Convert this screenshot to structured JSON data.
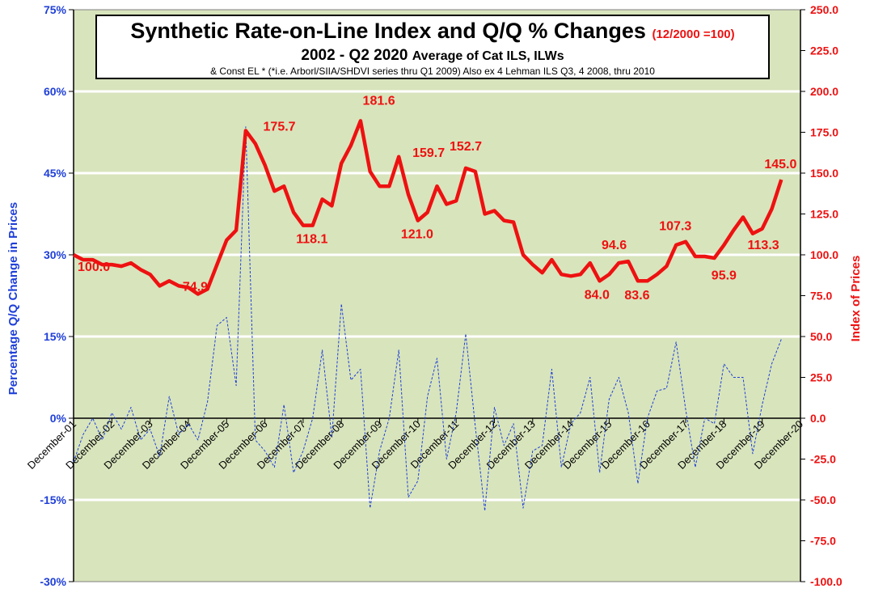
{
  "chart_data": {
    "type": "line",
    "title": "Synthetic Rate-on-Line Index and Q/Q % Changes",
    "title_note": "(12/2000 =100)",
    "subtitle": "2002 - Q2 2020",
    "subtitle_suffix": "Average of Cat ILS, ILWs",
    "footnote": "& Const EL * (*i.e. Arborl/SIIA/SHDVI  series thru Q1 2009)  Also ex 4 Lehman ILS Q3, 4 2008, thru 2010",
    "ylabel_left": "Percentage Q/Q Change in Prices",
    "ylabel_right": "Index of Prices",
    "ylim_left": [
      -30,
      75
    ],
    "ylim_right": [
      -100,
      250
    ],
    "yticks_left": [
      "-30%",
      "-15%",
      "0%",
      "15%",
      "30%",
      "45%",
      "60%",
      "75%"
    ],
    "yticks_right": [
      "-100.0",
      "-75.0",
      "-50.0",
      "-25.0",
      "0.0",
      "25.0",
      "50.0",
      "75.0",
      "100.0",
      "125.0",
      "150.0",
      "175.0",
      "200.0",
      "225.0",
      "250.0"
    ],
    "x_range": [
      2001.92,
      2020.92
    ],
    "x_ticks": [
      {
        "x": 2001.92,
        "label": "December-01"
      },
      {
        "x": 2002.92,
        "label": "December-02"
      },
      {
        "x": 2003.92,
        "label": "December-03"
      },
      {
        "x": 2004.92,
        "label": "December-04"
      },
      {
        "x": 2005.92,
        "label": "December-05"
      },
      {
        "x": 2006.92,
        "label": "December-06"
      },
      {
        "x": 2007.92,
        "label": "December-07"
      },
      {
        "x": 2008.92,
        "label": "December-08"
      },
      {
        "x": 2009.92,
        "label": "December-09"
      },
      {
        "x": 2010.92,
        "label": "December-10"
      },
      {
        "x": 2011.92,
        "label": "December-11"
      },
      {
        "x": 2012.92,
        "label": "December-12"
      },
      {
        "x": 2013.92,
        "label": "December-13"
      },
      {
        "x": 2014.92,
        "label": "December-14"
      },
      {
        "x": 2015.92,
        "label": "December-15"
      },
      {
        "x": 2016.92,
        "label": "December-16"
      },
      {
        "x": 2017.92,
        "label": "December-17"
      },
      {
        "x": 2018.92,
        "label": "December-18"
      },
      {
        "x": 2019.92,
        "label": "December-19"
      },
      {
        "x": 2020.92,
        "label": "December-20"
      }
    ],
    "grid": true,
    "series": [
      {
        "name": "",
        "axis": "right",
        "color": "#ee1111",
        "style": "solid",
        "points": [
          [
            2001.92,
            100
          ],
          [
            2002.17,
            97
          ],
          [
            2002.42,
            97
          ],
          [
            2002.67,
            94
          ],
          [
            2002.92,
            94
          ],
          [
            2003.17,
            93
          ],
          [
            2003.42,
            95
          ],
          [
            2003.67,
            91
          ],
          [
            2003.92,
            88
          ],
          [
            2004.17,
            81
          ],
          [
            2004.42,
            84
          ],
          [
            2004.67,
            81
          ],
          [
            2004.92,
            80
          ],
          [
            2005.17,
            76
          ],
          [
            2005.42,
            79
          ],
          [
            2005.67,
            94
          ],
          [
            2005.92,
            109
          ],
          [
            2006.17,
            115
          ],
          [
            2006.42,
            176
          ],
          [
            2006.67,
            168
          ],
          [
            2006.92,
            155
          ],
          [
            2007.17,
            139
          ],
          [
            2007.42,
            142
          ],
          [
            2007.67,
            126
          ],
          [
            2007.92,
            118
          ],
          [
            2008.17,
            118
          ],
          [
            2008.42,
            134
          ],
          [
            2008.67,
            130
          ],
          [
            2008.92,
            156
          ],
          [
            2009.17,
            167
          ],
          [
            2009.42,
            182
          ],
          [
            2009.67,
            151
          ],
          [
            2009.92,
            142
          ],
          [
            2010.17,
            142
          ],
          [
            2010.42,
            160
          ],
          [
            2010.67,
            137
          ],
          [
            2010.92,
            121
          ],
          [
            2011.17,
            126
          ],
          [
            2011.42,
            142
          ],
          [
            2011.67,
            131
          ],
          [
            2011.92,
            133
          ],
          [
            2012.17,
            153
          ],
          [
            2012.42,
            151
          ],
          [
            2012.67,
            125
          ],
          [
            2012.92,
            127
          ],
          [
            2013.17,
            121
          ],
          [
            2013.42,
            120
          ],
          [
            2013.67,
            100
          ],
          [
            2013.92,
            94
          ],
          [
            2014.17,
            89
          ],
          [
            2014.42,
            97
          ],
          [
            2014.67,
            88
          ],
          [
            2014.92,
            87
          ],
          [
            2015.17,
            88
          ],
          [
            2015.42,
            95
          ],
          [
            2015.67,
            84
          ],
          [
            2015.92,
            88
          ],
          [
            2016.17,
            95
          ],
          [
            2016.42,
            96
          ],
          [
            2016.67,
            84
          ],
          [
            2016.92,
            84
          ],
          [
            2017.17,
            88
          ],
          [
            2017.42,
            93
          ],
          [
            2017.67,
            106
          ],
          [
            2017.92,
            108
          ],
          [
            2018.17,
            99
          ],
          [
            2018.42,
            99
          ],
          [
            2018.67,
            98
          ],
          [
            2018.92,
            106
          ],
          [
            2019.17,
            115
          ],
          [
            2019.42,
            123
          ],
          [
            2019.67,
            113
          ],
          [
            2019.92,
            116
          ],
          [
            2020.17,
            128
          ],
          [
            2020.42,
            146
          ]
        ]
      },
      {
        "name": "",
        "axis": "left",
        "color": "#1f3fd8",
        "style": "dashed",
        "points": [
          [
            2001.92,
            -8
          ],
          [
            2002.17,
            -3
          ],
          [
            2002.42,
            0
          ],
          [
            2002.67,
            -4
          ],
          [
            2002.92,
            1
          ],
          [
            2003.17,
            -2
          ],
          [
            2003.42,
            2
          ],
          [
            2003.67,
            -4
          ],
          [
            2003.92,
            -2
          ],
          [
            2004.17,
            -7
          ],
          [
            2004.42,
            4
          ],
          [
            2004.67,
            -3
          ],
          [
            2004.92,
            -1
          ],
          [
            2005.17,
            -4
          ],
          [
            2005.42,
            3
          ],
          [
            2005.67,
            17
          ],
          [
            2005.92,
            18.5
          ],
          [
            2006.17,
            6
          ],
          [
            2006.42,
            53.5
          ],
          [
            2006.67,
            -4
          ],
          [
            2006.92,
            -6
          ],
          [
            2007.17,
            -9
          ],
          [
            2007.42,
            2.5
          ],
          [
            2007.67,
            -10
          ],
          [
            2007.92,
            -6
          ],
          [
            2008.17,
            0
          ],
          [
            2008.42,
            12.5
          ],
          [
            2008.67,
            -3.5
          ],
          [
            2008.92,
            21
          ],
          [
            2009.17,
            7
          ],
          [
            2009.42,
            9
          ],
          [
            2009.67,
            -16.5
          ],
          [
            2009.92,
            -6
          ],
          [
            2010.17,
            0
          ],
          [
            2010.42,
            12.5
          ],
          [
            2010.67,
            -14.5
          ],
          [
            2010.92,
            -11.5
          ],
          [
            2011.17,
            4
          ],
          [
            2011.42,
            11
          ],
          [
            2011.67,
            -7.5
          ],
          [
            2011.92,
            1
          ],
          [
            2012.17,
            15.5
          ],
          [
            2012.42,
            -1.5
          ],
          [
            2012.67,
            -17
          ],
          [
            2012.92,
            2
          ],
          [
            2013.17,
            -5
          ],
          [
            2013.42,
            -1
          ],
          [
            2013.67,
            -16.5
          ],
          [
            2013.92,
            -6
          ],
          [
            2014.17,
            -5
          ],
          [
            2014.42,
            9
          ],
          [
            2014.67,
            -9
          ],
          [
            2014.92,
            -1
          ],
          [
            2015.17,
            1
          ],
          [
            2015.42,
            7.5
          ],
          [
            2015.67,
            -10
          ],
          [
            2015.92,
            3.5
          ],
          [
            2016.17,
            7.5
          ],
          [
            2016.42,
            1
          ],
          [
            2016.67,
            -12
          ],
          [
            2016.92,
            0
          ],
          [
            2017.17,
            5
          ],
          [
            2017.42,
            5.5
          ],
          [
            2017.67,
            14
          ],
          [
            2017.92,
            1.5
          ],
          [
            2018.17,
            -9
          ],
          [
            2018.42,
            0
          ],
          [
            2018.67,
            -1
          ],
          [
            2018.92,
            10
          ],
          [
            2019.17,
            7.5
          ],
          [
            2019.42,
            7.5
          ],
          [
            2019.67,
            -6.5
          ],
          [
            2019.92,
            2.5
          ],
          [
            2020.17,
            10
          ],
          [
            2020.42,
            14.5
          ]
        ]
      }
    ],
    "annotations": [
      {
        "text": "100.0",
        "x": 2002.45,
        "y": 100
      },
      {
        "text": "74.9",
        "x": 2005.1,
        "y": 74.9
      },
      {
        "text": "175.7",
        "x": 2007.3,
        "y": 176
      },
      {
        "text": "118.1",
        "x": 2008.15,
        "y": 118.1
      },
      {
        "text": "181.6",
        "x": 2009.9,
        "y": 182
      },
      {
        "text": "159.7",
        "x": 2011.2,
        "y": 160
      },
      {
        "text": "121.0",
        "x": 2010.9,
        "y": 121
      },
      {
        "text": "152.7",
        "x": 2012.17,
        "y": 153
      },
      {
        "text": "84.0",
        "x": 2015.6,
        "y": 84
      },
      {
        "text": "94.6",
        "x": 2016.05,
        "y": 94.6
      },
      {
        "text": "83.6",
        "x": 2016.65,
        "y": 83.6
      },
      {
        "text": "107.3",
        "x": 2017.65,
        "y": 107.3
      },
      {
        "text": "95.9",
        "x": 2018.92,
        "y": 95.9
      },
      {
        "text": "113.3",
        "x": 2019.95,
        "y": 113.3
      },
      {
        "text": "145.0",
        "x": 2020.4,
        "y": 145
      }
    ]
  }
}
